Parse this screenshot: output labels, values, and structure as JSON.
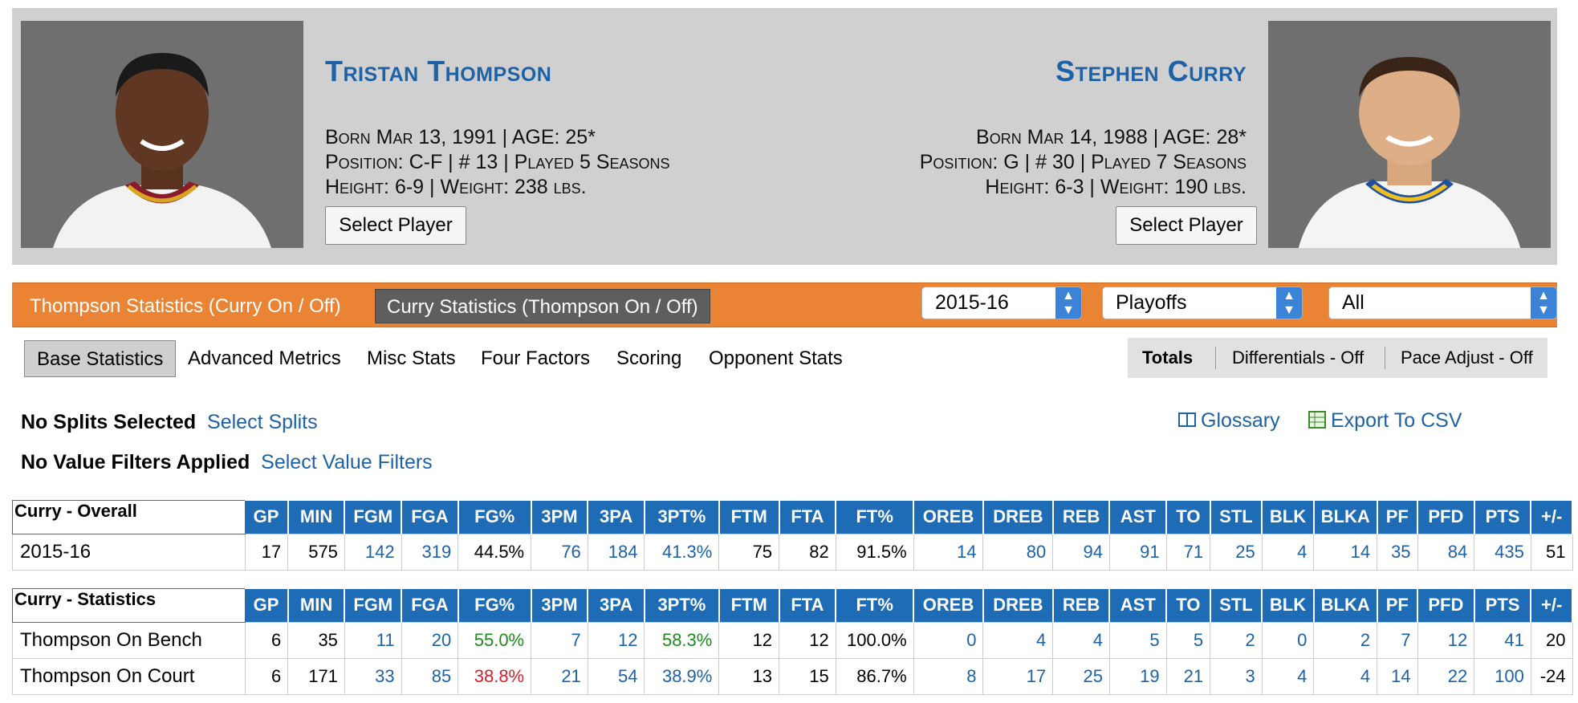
{
  "player_left": {
    "name": "Tristan Thompson",
    "line1": "Born Mar 13, 1991 |  AGE: 25*",
    "line2": "Position: C-F |  # 13 |  Played  5 Seasons",
    "line3": "Height: 6-9 |  Weight: 238 lbs.",
    "select_label": "Select Player"
  },
  "player_right": {
    "name": "Stephen Curry",
    "line1": "Born Mar 14, 1988 | AGE: 28*",
    "line2": "Position: G |  # 30 | Played  7 Seasons",
    "line3": "Height: 6-3 |  Weight: 190 lbs.",
    "select_label": "Select Player"
  },
  "stat_tabs": {
    "thompson": "Thompson Statistics (Curry On / Off)",
    "curry": "Curry Statistics (Thompson On / Off)"
  },
  "filters": {
    "season": "2015-16",
    "season_type": "Playoffs",
    "scope": "All"
  },
  "category_tabs": [
    "Base Statistics",
    "Advanced Metrics",
    "Misc Stats",
    "Four Factors",
    "Scoring",
    "Opponent Stats"
  ],
  "toggles": {
    "totals": "Totals",
    "differentials": "Differentials - Off",
    "pace": "Pace Adjust - Off"
  },
  "splits": {
    "label": "No Splits Selected",
    "link": "Select Splits"
  },
  "value_filters": {
    "label": "No Value Filters Applied",
    "link": "Select Value Filters"
  },
  "glossary": "Glossary",
  "export": "Export To CSV",
  "columns": [
    "GP",
    "MIN",
    "FGM",
    "FGA",
    "FG%",
    "3PM",
    "3PA",
    "3PT%",
    "FTM",
    "FTA",
    "FT%",
    "OREB",
    "DREB",
    "REB",
    "AST",
    "TO",
    "STL",
    "BLK",
    "BLKA",
    "PF",
    "PFD",
    "PTS",
    "+/-"
  ],
  "table_overall": {
    "title": "Curry - Overall",
    "rows": [
      {
        "label": "2015-16",
        "cells": [
          "17",
          "575",
          "142",
          "319",
          "44.5%",
          "76",
          "184",
          "41.3%",
          "75",
          "82",
          "91.5%",
          "14",
          "80",
          "94",
          "91",
          "71",
          "25",
          "4",
          "14",
          "35",
          "84",
          "435",
          "51"
        ]
      }
    ]
  },
  "table_statistics": {
    "title": "Curry - Statistics",
    "rows": [
      {
        "label": "Thompson On Bench",
        "cells": [
          "6",
          "35",
          "11",
          "20",
          "55.0%",
          "7",
          "12",
          "58.3%",
          "12",
          "12",
          "100.0%",
          "0",
          "4",
          "4",
          "5",
          "5",
          "2",
          "0",
          "2",
          "7",
          "12",
          "41",
          "20"
        ]
      },
      {
        "label": "Thompson On Court",
        "cells": [
          "6",
          "171",
          "33",
          "85",
          "38.8%",
          "21",
          "54",
          "38.9%",
          "13",
          "15",
          "86.7%",
          "8",
          "17",
          "25",
          "19",
          "21",
          "3",
          "4",
          "4",
          "14",
          "22",
          "100",
          "-24"
        ]
      }
    ]
  },
  "colors": {
    "accent_blue": "#1d62a6",
    "header_blue": "#1d6cb5",
    "orange": "#ea8434",
    "good_green": "#1e8a1e",
    "bad_red": "#d4202a"
  }
}
